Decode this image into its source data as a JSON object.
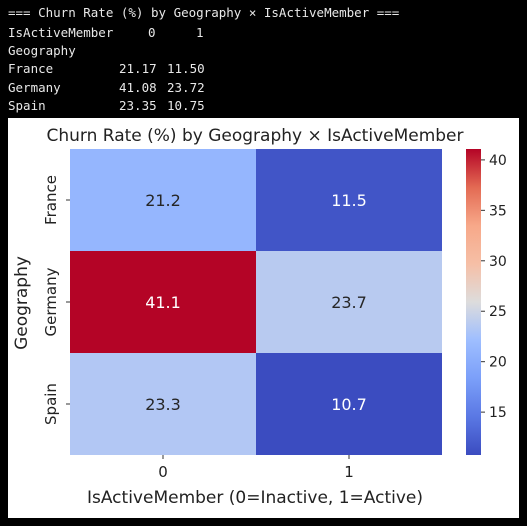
{
  "console": {
    "header": "=== Churn Rate (%) by Geography × IsActiveMember ===",
    "columns_label": "IsActiveMember",
    "column_values": [
      "0",
      "1"
    ],
    "index_label": "Geography",
    "rows": [
      {
        "label": "France",
        "values": [
          "21.17",
          "11.50"
        ]
      },
      {
        "label": "Germany",
        "values": [
          "41.08",
          "23.72"
        ]
      },
      {
        "label": "Spain",
        "values": [
          "23.35",
          "10.75"
        ]
      }
    ]
  },
  "chart_data": {
    "type": "heatmap",
    "title": "Churn Rate (%) by Geography × IsActiveMember",
    "xlabel": "IsActiveMember (0=Inactive, 1=Active)",
    "ylabel": "Geography",
    "x_categories": [
      "0",
      "1"
    ],
    "y_categories": [
      "France",
      "Germany",
      "Spain"
    ],
    "values": [
      [
        21.2,
        11.5
      ],
      [
        41.1,
        23.7
      ],
      [
        23.3,
        10.7
      ]
    ],
    "colormap": "coolwarm",
    "colorbar_ticks": [
      15,
      20,
      25,
      30,
      35,
      40
    ],
    "colorbar_range": [
      10.75,
      41.08
    ],
    "colors": {
      "low": "#3b4cc0",
      "mid": "#dddcdc",
      "high": "#b40426"
    }
  }
}
